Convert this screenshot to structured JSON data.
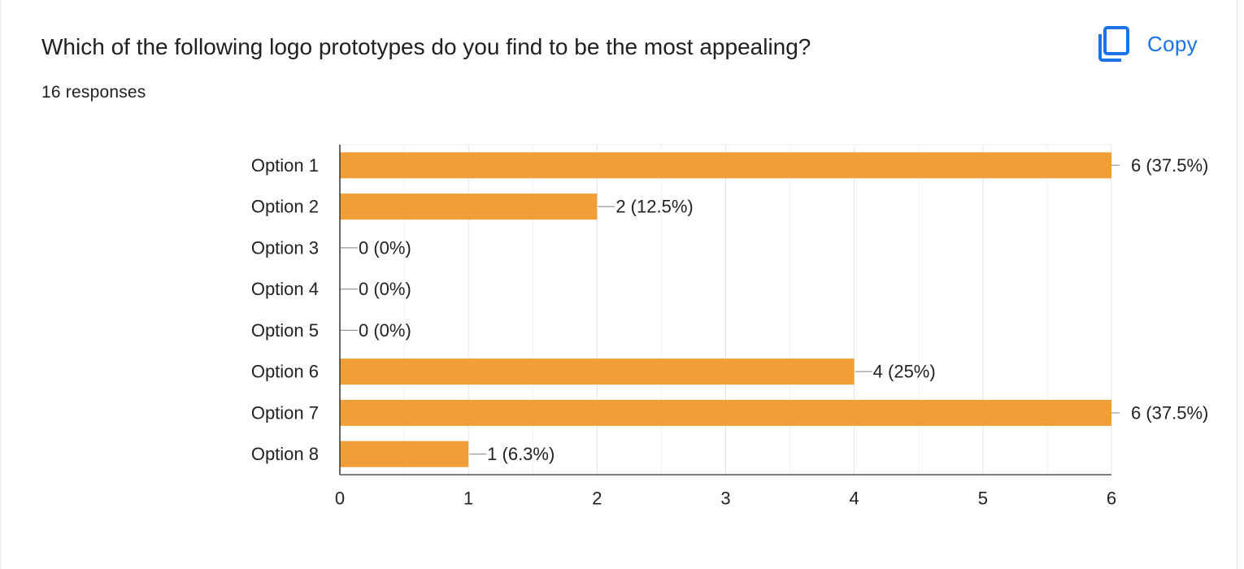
{
  "question": {
    "title": "Which of the following logo prototypes do you find to be the most appealing?",
    "response_count": "16 responses"
  },
  "copy_button": {
    "label": "Copy",
    "icon": "copy-icon"
  },
  "colors": {
    "bar": "#f09e38",
    "accent": "#1a73e8",
    "grid": "#e8e8e8",
    "axis": "#333333",
    "leader": "#999999"
  },
  "chart_data": {
    "type": "bar",
    "orientation": "horizontal",
    "title": "",
    "xlabel": "",
    "ylabel": "",
    "categories": [
      "Option 1",
      "Option 2",
      "Option 3",
      "Option 4",
      "Option 5",
      "Option 6",
      "Option 7",
      "Option 8"
    ],
    "values": [
      6,
      2,
      0,
      0,
      0,
      4,
      6,
      1
    ],
    "labels": [
      "6 (37.5%)",
      "2 (12.5%)",
      "0 (0%)",
      "0 (0%)",
      "0 (0%)",
      "4 (25%)",
      "6 (37.5%)",
      "1 (6.3%)"
    ],
    "xlim": [
      0,
      6
    ],
    "xticks": [
      "0",
      "1",
      "2",
      "3",
      "4",
      "5",
      "6"
    ],
    "grid": true
  }
}
